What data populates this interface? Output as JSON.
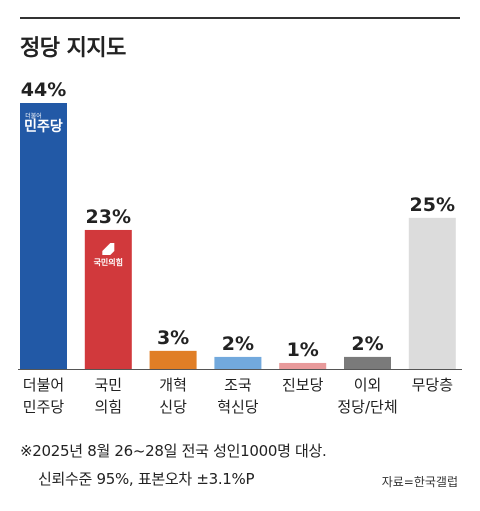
{
  "title": "정당 지지도",
  "chart_data": {
    "type": "bar",
    "title": "정당 지지도",
    "unit": "%",
    "ylim": [
      0,
      44
    ],
    "categories": [
      [
        "더불어",
        "민주당"
      ],
      [
        "국민",
        "의힘"
      ],
      [
        "개혁",
        "신당"
      ],
      [
        "조국",
        "혁신당"
      ],
      [
        "진보당"
      ],
      [
        "이외",
        "정당/단체"
      ],
      [
        "무당층"
      ]
    ],
    "values": [
      44,
      23,
      3,
      2,
      1,
      2,
      25
    ],
    "value_labels": [
      "44%",
      "23%",
      "3%",
      "2%",
      "1%",
      "2%",
      "25%"
    ],
    "colors": [
      "#2259a6",
      "#d1393c",
      "#e07e26",
      "#72a9dd",
      "#e89a9b",
      "#7a7a7a",
      "#dcdcdc"
    ],
    "bar_logos": [
      {
        "small": "더불어",
        "main": "민주당"
      },
      {
        "main": "국민의힘"
      },
      null,
      null,
      null,
      null,
      null
    ]
  },
  "notes": {
    "line1": "※2025년 8월 26~28일 전국 성인1000명 대상.",
    "line2": "신뢰수준 95%, 표본오차 ±3.1%P"
  },
  "source": "자료=한국갤럽"
}
